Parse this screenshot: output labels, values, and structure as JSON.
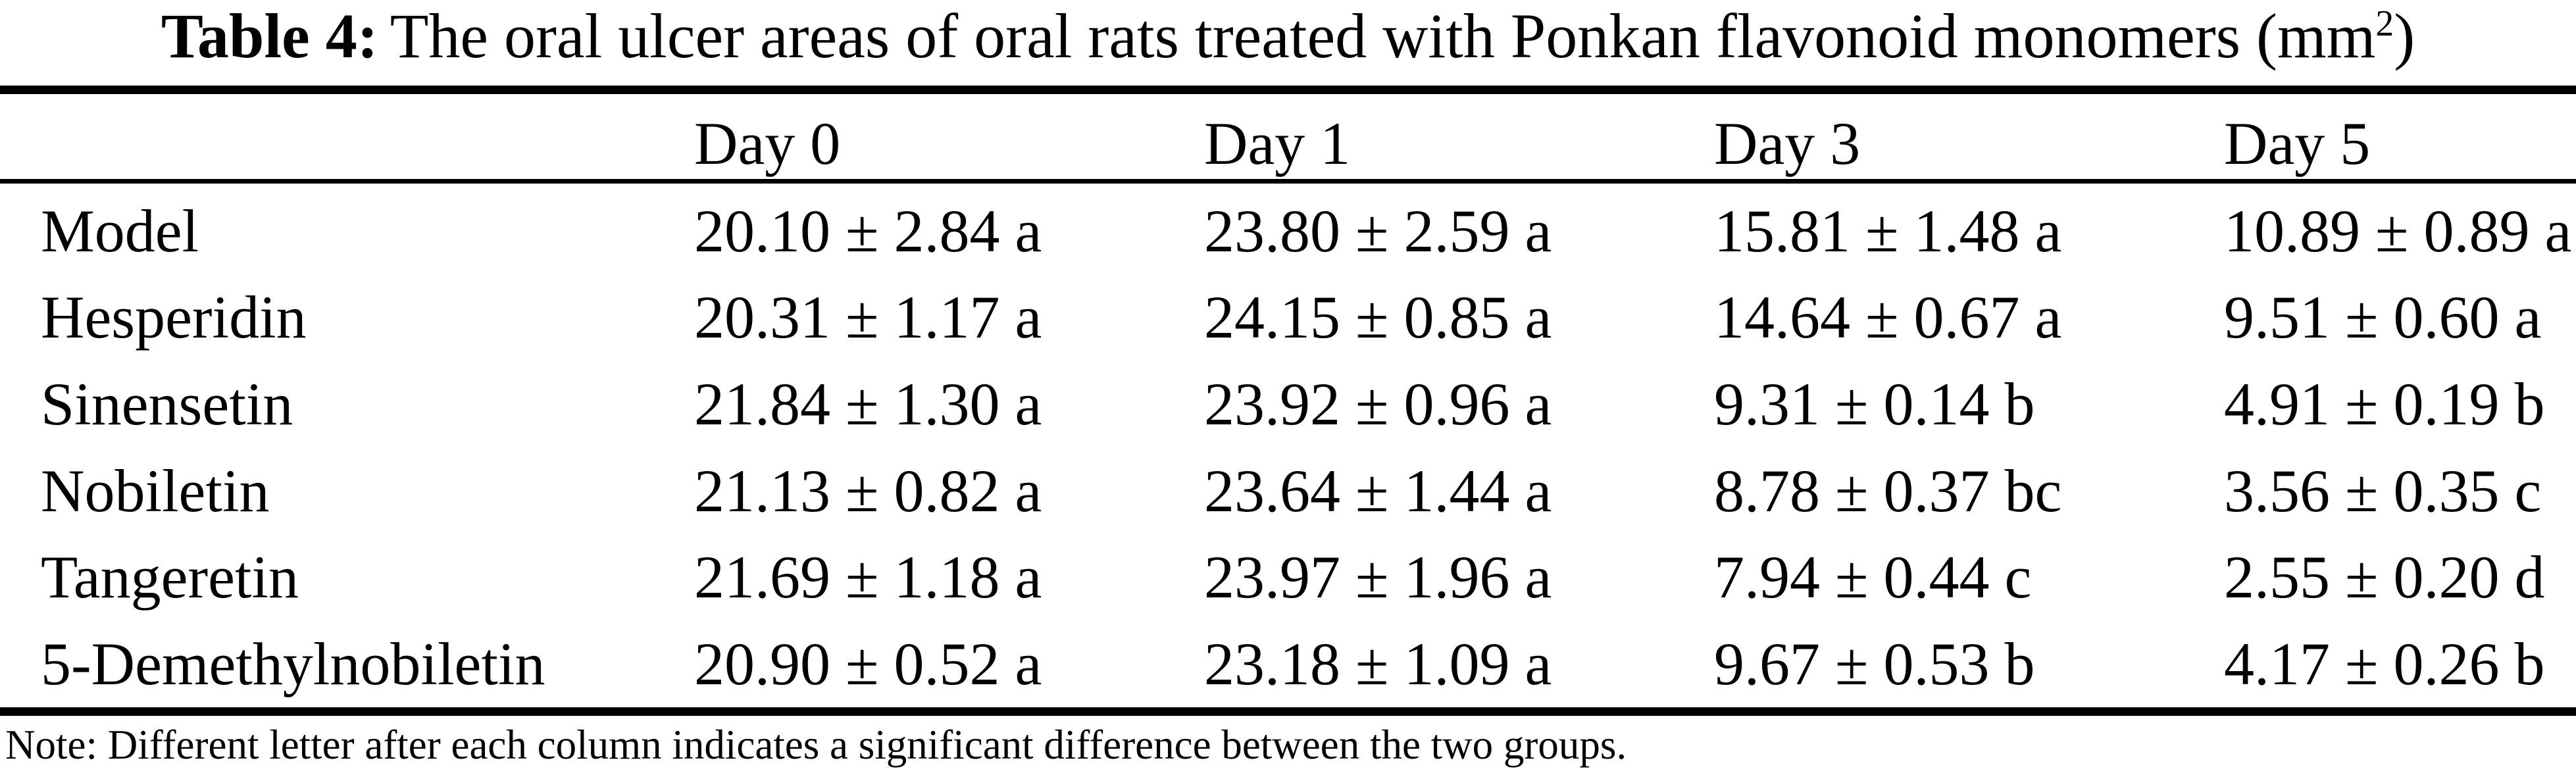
{
  "table": {
    "title": {
      "label": "Table 4:",
      "text": "The oral ulcer areas of oral rats treated with Ponkan flavonoid monomers (mm",
      "sup": "2",
      "suffix": ")"
    },
    "columns": [
      "Day 0",
      "Day 1",
      "Day 3",
      "Day 5"
    ],
    "rows": [
      {
        "label": "Model",
        "cells": [
          "20.10 ± 2.84 a",
          "23.80 ± 2.59 a",
          "15.81 ± 1.48 a",
          "10.89 ± 0.89 a"
        ]
      },
      {
        "label": "Hesperidin",
        "cells": [
          "20.31 ± 1.17 a",
          "24.15 ± 0.85 a",
          "14.64 ± 0.67 a",
          "9.51 ± 0.60 a"
        ]
      },
      {
        "label": "Sinensetin",
        "cells": [
          "21.84 ± 1.30 a",
          "23.92 ± 0.96 a",
          "9.31 ± 0.14 b",
          "4.91 ± 0.19 b"
        ]
      },
      {
        "label": "Nobiletin",
        "cells": [
          "21.13 ± 0.82 a",
          "23.64 ± 1.44 a",
          "8.78 ± 0.37 bc",
          "3.56 ± 0.35 c"
        ]
      },
      {
        "label": "Tangeretin",
        "cells": [
          "21.69 ± 1.18 a",
          "23.97 ± 1.96 a",
          "7.94 ± 0.44 c",
          "2.55 ± 0.20 d"
        ]
      },
      {
        "label": "5-Demethylnobiletin",
        "cells": [
          "20.90 ± 0.52 a",
          "23.18 ± 1.09 a",
          "9.67 ± 0.53 b",
          "4.17 ± 0.26 b"
        ]
      }
    ],
    "note": "Note: Different letter after each column indicates a significant difference between the two groups."
  }
}
